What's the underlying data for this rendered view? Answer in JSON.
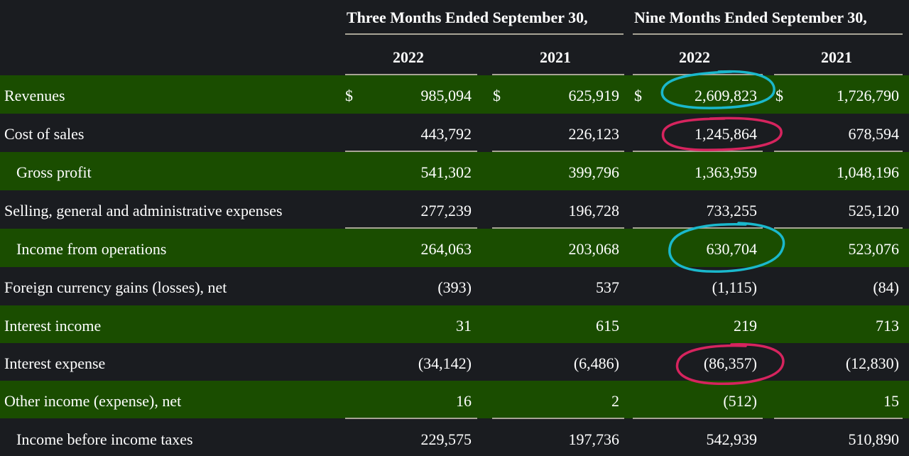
{
  "header": {
    "period1": "Three Months Ended September 30,",
    "period2": "Nine Months Ended September 30,",
    "years": [
      "2022",
      "2021",
      "2022",
      "2021"
    ]
  },
  "currency_symbol": "$",
  "rows": [
    {
      "label": "Revenues",
      "values": [
        "985,094",
        "625,919",
        "2,609,823",
        "1,726,790"
      ]
    },
    {
      "label": "Cost of sales",
      "values": [
        "443,792",
        "226,123",
        "1,245,864",
        "678,594"
      ]
    },
    {
      "label": "Gross profit",
      "values": [
        "541,302",
        "399,796",
        "1,363,959",
        "1,048,196"
      ]
    },
    {
      "label": "Selling, general and administrative expenses",
      "values": [
        "277,239",
        "196,728",
        "733,255",
        "525,120"
      ]
    },
    {
      "label": "Income from operations",
      "values": [
        "264,063",
        "203,068",
        "630,704",
        "523,076"
      ]
    },
    {
      "label": "Foreign currency gains (losses), net",
      "values": [
        "(393)",
        "537",
        "(1,115)",
        "(84)"
      ]
    },
    {
      "label": "Interest income",
      "values": [
        "31",
        "615",
        "219",
        "713"
      ]
    },
    {
      "label": "Interest expense",
      "values": [
        "(34,142)",
        "(6,486)",
        "(86,357)",
        "(12,830)"
      ]
    },
    {
      "label": "Other income (expense), net",
      "values": [
        "16",
        "2",
        "(512)",
        "15"
      ]
    },
    {
      "label": "Income before income taxes",
      "values": [
        "229,575",
        "197,736",
        "542,939",
        "510,890"
      ]
    }
  ],
  "colors": {
    "background": "#1a1c20",
    "row_highlight": "#1a4d00",
    "text": "#ffffff",
    "rule": "#a8a496",
    "circle_cyan": "#1ab8cc",
    "circle_pink": "#d6245e"
  }
}
